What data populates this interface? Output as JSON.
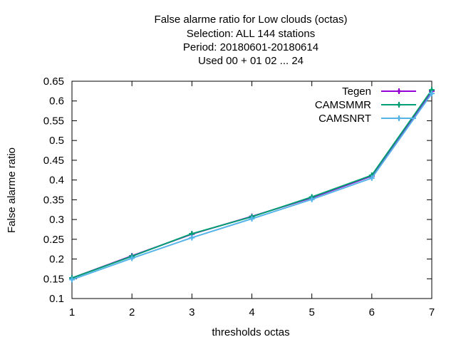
{
  "chart_data": {
    "type": "line",
    "title_lines": [
      "False alarme ratio  for Low clouds (octas)",
      "Selection: ALL    144 stations",
      "Period: 20180601-20180614",
      "Used  00 + 01 02 ... 24"
    ],
    "xlabel": "thresholds octas",
    "ylabel": "False alarme ratio",
    "xlim": [
      1,
      7
    ],
    "ylim": [
      0.1,
      0.65
    ],
    "x_ticks": [
      "1",
      "2",
      "3",
      "4",
      "5",
      "6",
      "7"
    ],
    "y_ticks": [
      "0.1",
      "0.15",
      "0.2",
      "0.25",
      "0.3",
      "0.35",
      "0.4",
      "0.45",
      "0.5",
      "0.55",
      "0.6",
      "0.65"
    ],
    "grid": false,
    "legend_position": "top-right",
    "x": [
      1,
      2,
      3,
      4,
      5,
      6,
      7
    ],
    "series": [
      {
        "name": "Tegen",
        "color": "#9400d3",
        "values": [
          0.152,
          0.208,
          0.263,
          0.308,
          0.355,
          0.41,
          0.625
        ]
      },
      {
        "name": "CAMSMMR",
        "color": "#009e73",
        "values": [
          0.152,
          0.207,
          0.264,
          0.307,
          0.357,
          0.412,
          0.628
        ]
      },
      {
        "name": "CAMSNRT",
        "color": "#56b4e9",
        "values": [
          0.148,
          0.202,
          0.254,
          0.302,
          0.351,
          0.405,
          0.619
        ]
      }
    ]
  }
}
